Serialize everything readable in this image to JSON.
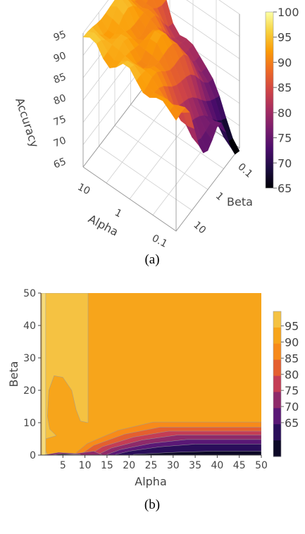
{
  "palette": {
    "inferno": [
      "#000004",
      "#1b0c41",
      "#4a0c6b",
      "#781c6d",
      "#a52c60",
      "#cf4446",
      "#ed6925",
      "#fb9b06",
      "#f7d13d",
      "#fcffa4"
    ],
    "contour": [
      "#0c0826",
      "#2a0e5a",
      "#5a1876",
      "#8e2a6a",
      "#c43d55",
      "#e45f2f",
      "#f78a1a",
      "#f7a51b",
      "#f5c242",
      "#f8dc78"
    ]
  },
  "chart_data": [
    {
      "panel": "a",
      "type": "surface",
      "caption": "(a)",
      "xlabel": "Alpha",
      "ylabel": "Beta",
      "zlabel": "Accuracy",
      "x_ticks": [
        "10",
        "1",
        "0.1"
      ],
      "y_ticks": [
        "0.1",
        "1",
        "10"
      ],
      "z_ticks": [
        "95",
        "90",
        "85",
        "80",
        "75",
        "70",
        "65"
      ],
      "z_range": [
        65,
        95
      ],
      "surface_note": "accuracy surface mostly near 92-95, dipping steeply to about 65 at low Alpha/low Beta edge",
      "sample_points": [
        {
          "alpha": 10,
          "beta": 0.1,
          "accuracy": 65
        },
        {
          "alpha": 10,
          "beta": 1,
          "accuracy": 75
        },
        {
          "alpha": 10,
          "beta": 10,
          "accuracy": 92
        },
        {
          "alpha": 1,
          "beta": 0.1,
          "accuracy": 80
        },
        {
          "alpha": 1,
          "beta": 1,
          "accuracy": 92
        },
        {
          "alpha": 1,
          "beta": 10,
          "accuracy": 94
        },
        {
          "alpha": 0.1,
          "beta": 0.1,
          "accuracy": 92
        },
        {
          "alpha": 0.1,
          "beta": 1,
          "accuracy": 94
        },
        {
          "alpha": 0.1,
          "beta": 10,
          "accuracy": 95
        }
      ],
      "colorbar": {
        "ticks": [
          "100",
          "95",
          "90",
          "85",
          "80",
          "75",
          "70",
          "65"
        ],
        "range": [
          65,
          100
        ]
      }
    },
    {
      "panel": "b",
      "type": "contour",
      "caption": "(b)",
      "xlabel": "Alpha",
      "ylabel": "Beta",
      "xlim": [
        0,
        50
      ],
      "ylim": [
        0,
        50
      ],
      "x_ticks": [
        "5",
        "10",
        "15",
        "20",
        "25",
        "30",
        "35",
        "40",
        "45",
        "50"
      ],
      "y_ticks": [
        "0",
        "10",
        "20",
        "30",
        "40",
        "50"
      ],
      "levels": [
        65,
        70,
        75,
        80,
        85,
        90,
        95
      ],
      "colorbar": {
        "ticks": [
          "95",
          "90",
          "85",
          "80",
          "75",
          "70",
          "65"
        ]
      }
    }
  ]
}
